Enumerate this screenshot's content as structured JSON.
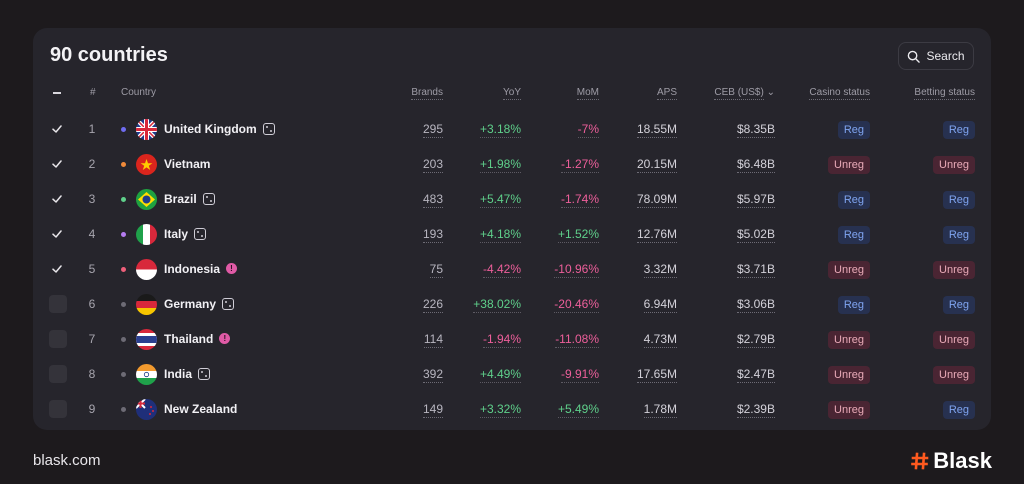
{
  "header": {
    "title": "90 countries",
    "search_label": "Search"
  },
  "columns": {
    "number": "#",
    "country": "Country",
    "brands": "Brands",
    "yoy": "YoY",
    "mom": "MoM",
    "aps": "APS",
    "ceb": "CEB (US$)",
    "casino_status": "Casino status",
    "betting_status": "Betting status"
  },
  "rows": [
    {
      "checked": true,
      "num": "1",
      "dot_color": "#6f6cf0",
      "country": "United Kingdom",
      "flag": "uk",
      "badge": "dice",
      "brands": "295",
      "yoy": "+3.18%",
      "mom": "-7%",
      "aps": "18.55M",
      "ceb": "$8.35B",
      "casino": "Reg",
      "betting": "Reg"
    },
    {
      "checked": true,
      "num": "2",
      "dot_color": "#f08a3a",
      "country": "Vietnam",
      "flag": "vn",
      "badge": "",
      "brands": "203",
      "yoy": "+1.98%",
      "mom": "-1.27%",
      "aps": "20.15M",
      "ceb": "$6.48B",
      "casino": "Unreg",
      "betting": "Unreg"
    },
    {
      "checked": true,
      "num": "3",
      "dot_color": "#5fd08b",
      "country": "Brazil",
      "flag": "br",
      "badge": "dice",
      "brands": "483",
      "yoy": "+5.47%",
      "mom": "-1.74%",
      "aps": "78.09M",
      "ceb": "$5.97B",
      "casino": "Reg",
      "betting": "Reg"
    },
    {
      "checked": true,
      "num": "4",
      "dot_color": "#b57cf0",
      "country": "Italy",
      "flag": "it",
      "badge": "dice",
      "brands": "193",
      "yoy": "+4.18%",
      "mom": "+1.52%",
      "aps": "12.76M",
      "ceb": "$5.02B",
      "casino": "Reg",
      "betting": "Reg"
    },
    {
      "checked": true,
      "num": "5",
      "dot_color": "#ee5f7a",
      "country": "Indonesia",
      "flag": "id",
      "badge": "alert",
      "brands": "75",
      "yoy": "-4.42%",
      "mom": "-10.96%",
      "aps": "3.32M",
      "ceb": "$3.71B",
      "casino": "Unreg",
      "betting": "Unreg"
    },
    {
      "checked": false,
      "num": "6",
      "dot_color": "#6d6b75",
      "country": "Germany",
      "flag": "de",
      "badge": "dice",
      "brands": "226",
      "yoy": "+38.02%",
      "mom": "-20.46%",
      "aps": "6.94M",
      "ceb": "$3.06B",
      "casino": "Reg",
      "betting": "Reg"
    },
    {
      "checked": false,
      "num": "7",
      "dot_color": "#6d6b75",
      "country": "Thailand",
      "flag": "th",
      "badge": "alert",
      "brands": "114",
      "yoy": "-1.94%",
      "mom": "-11.08%",
      "aps": "4.73M",
      "ceb": "$2.79B",
      "casino": "Unreg",
      "betting": "Unreg"
    },
    {
      "checked": false,
      "num": "8",
      "dot_color": "#6d6b75",
      "country": "India",
      "flag": "in",
      "badge": "dice",
      "brands": "392",
      "yoy": "+4.49%",
      "mom": "-9.91%",
      "aps": "17.65M",
      "ceb": "$2.47B",
      "casino": "Unreg",
      "betting": "Unreg"
    },
    {
      "checked": false,
      "num": "9",
      "dot_color": "#6d6b75",
      "country": "New Zealand",
      "flag": "nz",
      "badge": "",
      "brands": "149",
      "yoy": "+3.32%",
      "mom": "+5.49%",
      "aps": "1.78M",
      "ceb": "$2.39B",
      "casino": "Unreg",
      "betting": "Reg"
    }
  ],
  "footer": {
    "url": "blask.com",
    "logo_text": "Blask"
  },
  "colors": {
    "positive": "#5fd08b",
    "negative": "#ee5f9b",
    "reg_bg": "#273150",
    "unreg_bg": "#4a2533",
    "brand": "#ff5a1f"
  }
}
